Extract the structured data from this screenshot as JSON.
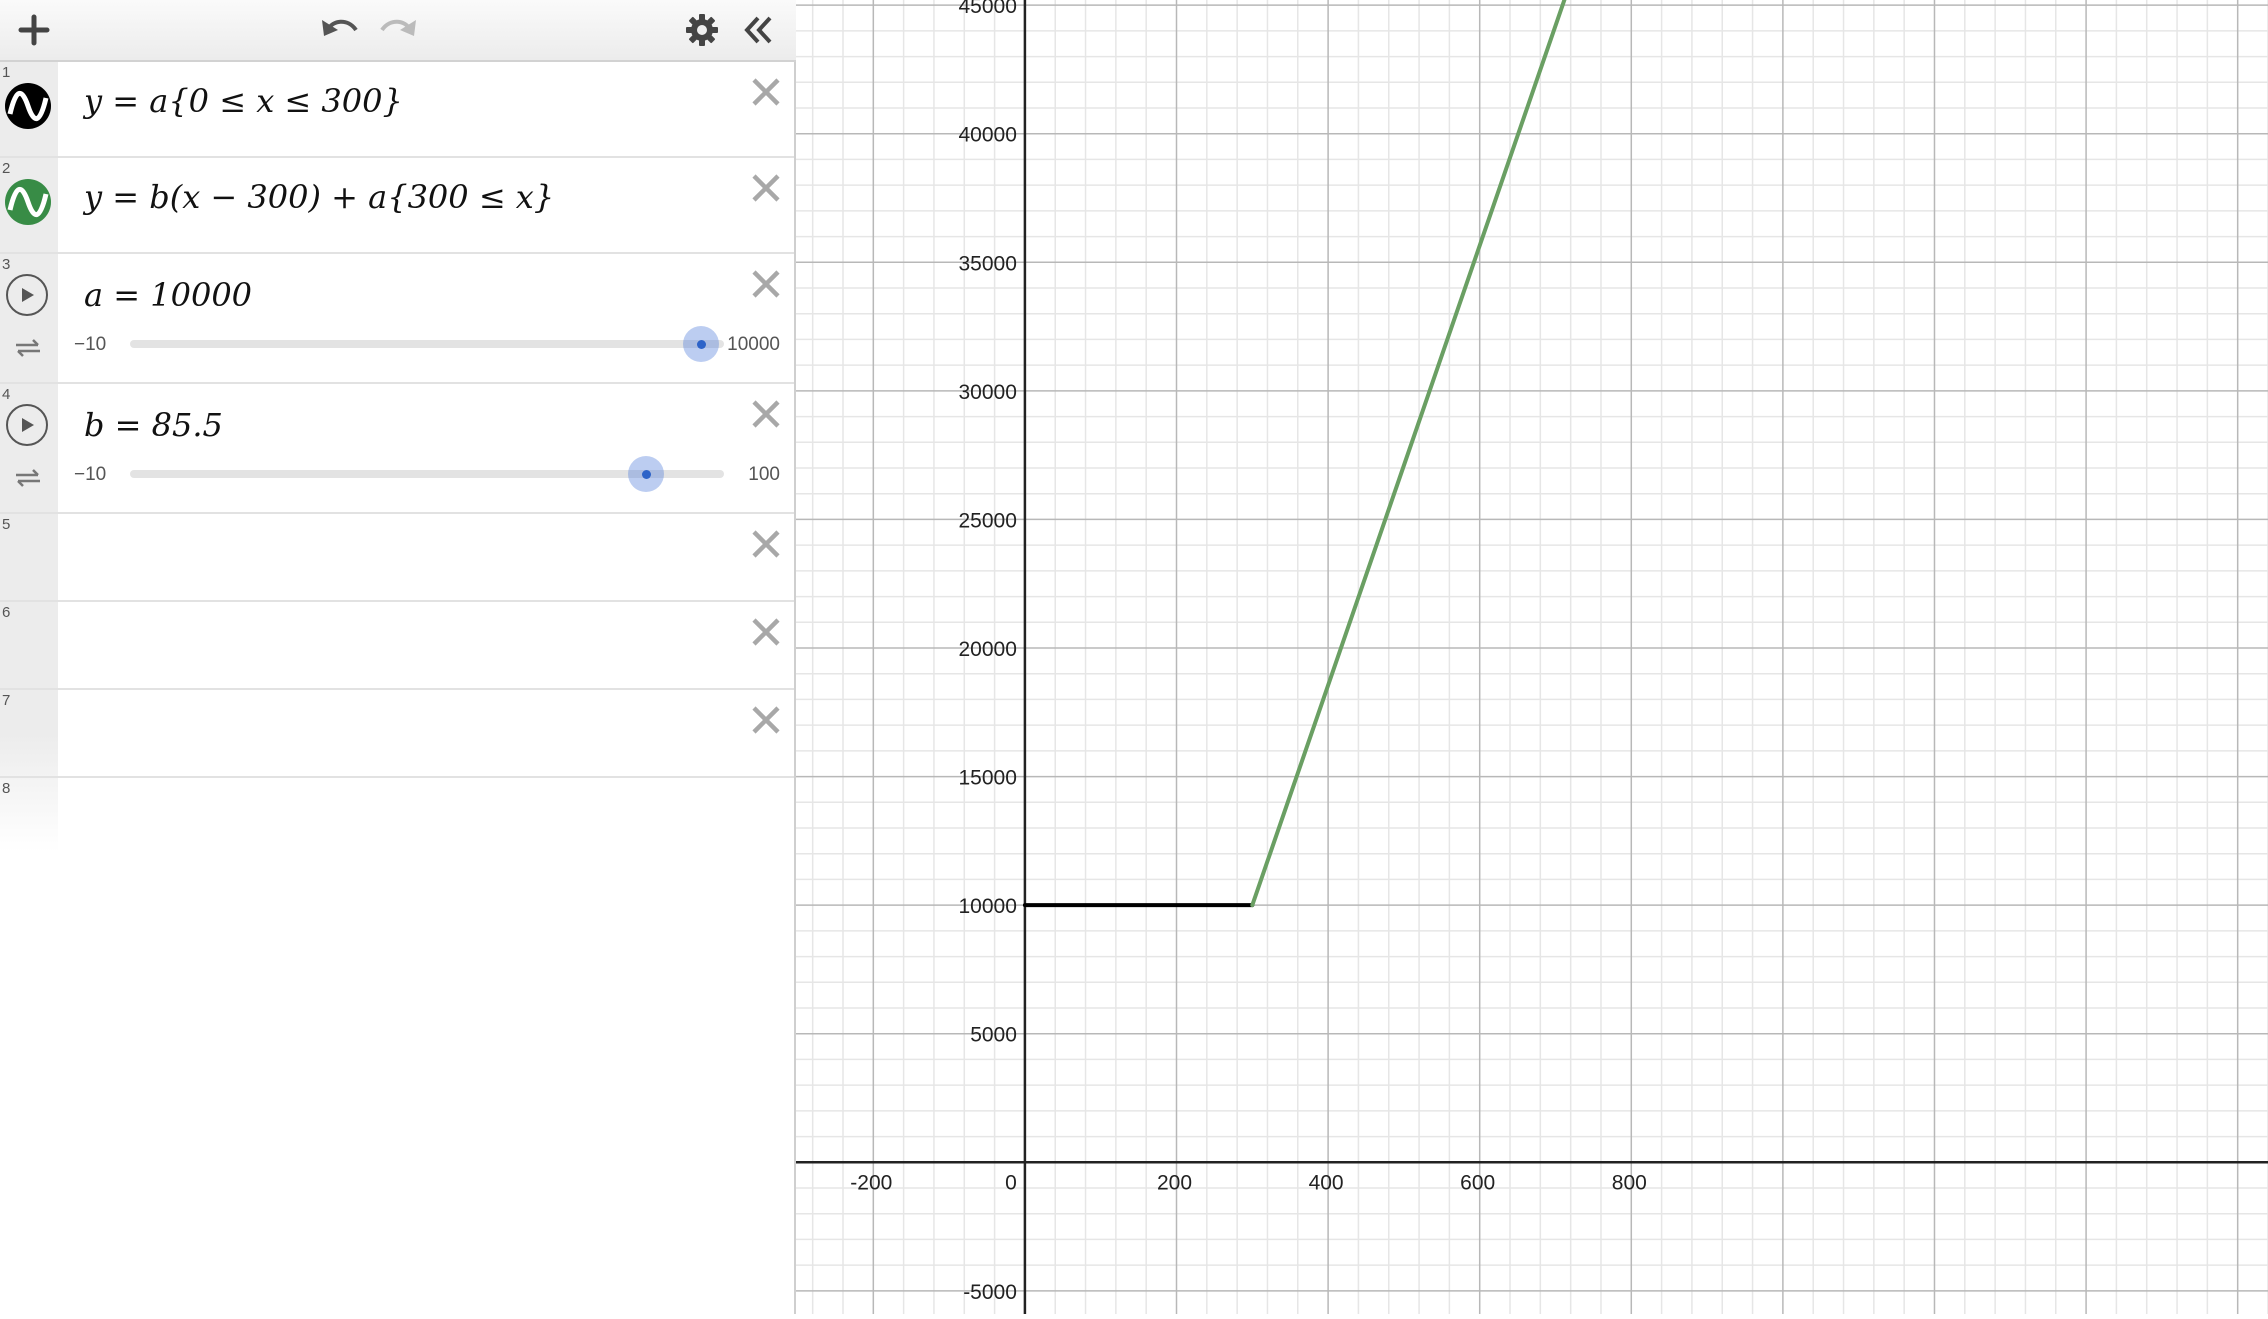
{
  "toolbar": {
    "add": "add-icon",
    "undo": "undo-icon",
    "redo": "redo-icon",
    "settings": "gear-icon",
    "collapse": "collapse-icon"
  },
  "expressions": [
    {
      "num": "1",
      "latex": "y = a{0 ≤ x ≤ 300}",
      "color": "#000000"
    },
    {
      "num": "2",
      "latex": "y = b(x − 300) + a{300 ≤ x}",
      "color": "#388c46"
    },
    {
      "num": "3",
      "latex": "a = 10000",
      "slider": {
        "min": "−10",
        "max": "10000",
        "value": 10000
      }
    },
    {
      "num": "4",
      "latex": "b = 85.5",
      "slider": {
        "min": "−10",
        "max": "100",
        "value": 85.5
      }
    },
    {
      "num": "5"
    },
    {
      "num": "6"
    },
    {
      "num": "7"
    },
    {
      "num": "8"
    }
  ],
  "graph": {
    "x_ticks": [
      "-200",
      "0",
      "200",
      "400",
      "600",
      "800"
    ],
    "y_ticks": [
      "-5000",
      "5000",
      "10000",
      "15000",
      "20000",
      "25000",
      "30000",
      "35000",
      "40000",
      "45000"
    ],
    "colors": {
      "segment1": "#000000",
      "segment2": "#6a9f63"
    }
  },
  "chart_data": {
    "type": "line",
    "xlim": [
      -302,
      1640
    ],
    "ylim": [
      -5900,
      45200
    ],
    "grid": true,
    "series": [
      {
        "x": [
          0,
          300
        ],
        "y": [
          10000,
          10000
        ]
      },
      {
        "x": [
          300,
          720
        ],
        "y": [
          10000,
          45910
        ]
      }
    ]
  }
}
